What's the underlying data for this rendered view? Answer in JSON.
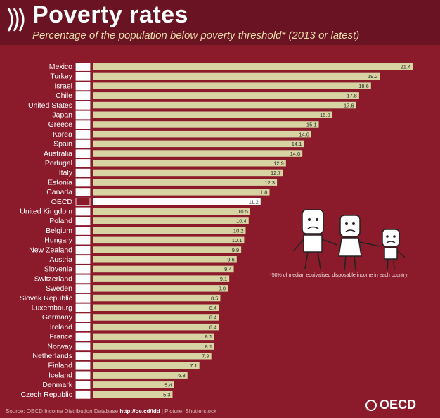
{
  "header": {
    "title": "Poverty rates",
    "subtitle": "Percentage of the population below poverty threshold* (2013 or latest)"
  },
  "footnote": "*50% of median equivalised disposable income in each country",
  "source": {
    "prefix": "Source: OECD Income Distribution Database",
    "link": "http://oe.cd/idd",
    "suffix": "| Picture: Shutterstock"
  },
  "logo_text": "OECD",
  "colors": {
    "background": "#8b1a2b",
    "bar": "#d8d3a3",
    "highlight_bar": "#ffffff"
  },
  "icons": [
    "oecd-logo-icon",
    "country-flag-icon",
    "cartoon-family-illustration"
  ],
  "chart_data": {
    "type": "bar",
    "orientation": "horizontal",
    "title": "Poverty rates",
    "subtitle": "Percentage of the population below poverty threshold* (2013 or latest)",
    "xlim": [
      0,
      22
    ],
    "grid": false,
    "categories": [
      "Mexico",
      "Turkey",
      "Israel",
      "Chile",
      "United States",
      "Japan",
      "Greece",
      "Korea",
      "Spain",
      "Australia",
      "Portugal",
      "Italy",
      "Estonia",
      "Canada",
      "OECD",
      "United Kingdom",
      "Poland",
      "Belgium",
      "Hungary",
      "New Zealand",
      "Austria",
      "Slovenia",
      "Switzerland",
      "Sweden",
      "Slovak Republic",
      "Luxembourg",
      "Germany",
      "Ireland",
      "France",
      "Norway",
      "Netherlands",
      "Finland",
      "Iceland",
      "Denmark",
      "Czech Republic"
    ],
    "values": [
      21.4,
      19.2,
      18.6,
      17.8,
      17.6,
      16.0,
      15.1,
      14.6,
      14.1,
      14.0,
      12.9,
      12.7,
      12.3,
      11.8,
      11.2,
      10.5,
      10.4,
      10.2,
      10.1,
      9.9,
      9.6,
      9.4,
      9.1,
      9.0,
      8.5,
      8.4,
      8.4,
      8.4,
      8.1,
      8.1,
      7.9,
      7.1,
      6.3,
      5.4,
      5.3
    ],
    "value_labels": [
      "21.4",
      "19.2",
      "18.6",
      "17.8",
      "17.6",
      "16.0",
      "15.1",
      "14.6",
      "14.1",
      "14.0",
      "12.9",
      "12.7",
      "12.3",
      "11.8",
      "11.2",
      "10.5",
      "10.4",
      "10.2",
      "10.1",
      "9.9",
      "9.6",
      "9.4",
      "9.1",
      "9.0",
      "8.5",
      "8.4",
      "8.4",
      "8.4",
      "8.1",
      "8.1",
      "7.9",
      "7.1",
      "6.3",
      "5.4",
      "5.3"
    ],
    "highlight": "OECD"
  }
}
